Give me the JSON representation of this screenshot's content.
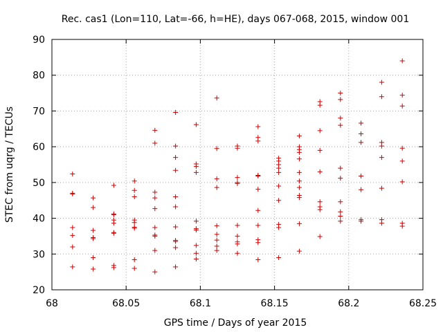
{
  "chart_data": {
    "type": "scatter",
    "title": "Rec. cas1 (Lon=110, Lat=-66, h=HE), days 067-068, 2015, window 001",
    "xlabel": "GPS time / Days of year 2015",
    "ylabel": "STEC from uqrg / TECUs",
    "xlim": [
      68,
      68.25
    ],
    "ylim": [
      20,
      90
    ],
    "xticks": [
      68,
      68.05,
      68.1,
      68.15,
      68.2,
      68.25
    ],
    "xtick_labels": [
      "68",
      "68.05",
      "68.1",
      "68.15",
      "68.2",
      "68.25"
    ],
    "yticks": [
      20,
      30,
      40,
      50,
      60,
      70,
      80,
      90
    ],
    "ytick_labels": [
      "20",
      "30",
      "40",
      "50",
      "60",
      "70",
      "80",
      "90"
    ],
    "grid": true,
    "marker": "+",
    "color": "#cc0000",
    "series": [
      {
        "name": "STEC",
        "points": [
          [
            68.0139,
            52.4
          ],
          [
            68.0139,
            47.0
          ],
          [
            68.0139,
            46.8
          ],
          [
            68.0139,
            37.4
          ],
          [
            68.0139,
            35.2
          ],
          [
            68.0139,
            32.0
          ],
          [
            68.0139,
            26.4
          ],
          [
            68.0278,
            45.7
          ],
          [
            68.0278,
            43.0
          ],
          [
            68.0278,
            36.6
          ],
          [
            68.0278,
            34.6
          ],
          [
            68.0278,
            34.3
          ],
          [
            68.0278,
            29.0
          ],
          [
            68.0278,
            25.8
          ],
          [
            68.0417,
            49.2
          ],
          [
            68.0417,
            41.2
          ],
          [
            68.0417,
            41.0
          ],
          [
            68.0417,
            39.5
          ],
          [
            68.0417,
            38.6
          ],
          [
            68.0417,
            36.0
          ],
          [
            68.0417,
            35.8
          ],
          [
            68.0417,
            26.8
          ],
          [
            68.0417,
            26.2
          ],
          [
            68.0556,
            50.4
          ],
          [
            68.0556,
            47.8
          ],
          [
            68.0556,
            46.0
          ],
          [
            68.0556,
            39.5
          ],
          [
            68.0556,
            38.8
          ],
          [
            68.0556,
            37.5
          ],
          [
            68.0556,
            37.2
          ],
          [
            68.0556,
            28.4
          ],
          [
            68.0556,
            26.0
          ],
          [
            68.0694,
            64.6
          ],
          [
            68.0694,
            61.0
          ],
          [
            68.0694,
            47.3
          ],
          [
            68.0694,
            45.7
          ],
          [
            68.0694,
            42.7
          ],
          [
            68.0694,
            37.4
          ],
          [
            68.0694,
            35.3
          ],
          [
            68.0694,
            35.0
          ],
          [
            68.0694,
            31.0
          ],
          [
            68.0694,
            25.0
          ],
          [
            68.0833,
            69.6
          ],
          [
            68.0833,
            60.2
          ],
          [
            68.0833,
            57.0
          ],
          [
            68.0833,
            53.4
          ],
          [
            68.0833,
            46.0
          ],
          [
            68.0833,
            43.2
          ],
          [
            68.0833,
            37.6
          ],
          [
            68.0833,
            33.8
          ],
          [
            68.0833,
            33.5
          ],
          [
            68.0833,
            31.8
          ],
          [
            68.0833,
            26.4
          ],
          [
            68.0972,
            66.2
          ],
          [
            68.0972,
            55.2
          ],
          [
            68.0972,
            54.5
          ],
          [
            68.0972,
            52.8
          ],
          [
            68.0972,
            39.2
          ],
          [
            68.0972,
            37.1
          ],
          [
            68.0972,
            36.7
          ],
          [
            68.0972,
            32.4
          ],
          [
            68.0972,
            30.2
          ],
          [
            68.0972,
            28.6
          ],
          [
            68.1111,
            73.6
          ],
          [
            68.1111,
            59.5
          ],
          [
            68.1111,
            51.0
          ],
          [
            68.1111,
            48.6
          ],
          [
            68.1111,
            37.9
          ],
          [
            68.1111,
            35.5
          ],
          [
            68.1111,
            33.9
          ],
          [
            68.1111,
            32.2
          ],
          [
            68.1111,
            31.0
          ],
          [
            68.125,
            60.2
          ],
          [
            68.125,
            59.6
          ],
          [
            68.125,
            51.4
          ],
          [
            68.125,
            50.0
          ],
          [
            68.125,
            49.7
          ],
          [
            68.125,
            38.0
          ],
          [
            68.125,
            35.0
          ],
          [
            68.125,
            33.4
          ],
          [
            68.125,
            32.8
          ],
          [
            68.125,
            30.2
          ],
          [
            68.1389,
            65.6
          ],
          [
            68.1389,
            62.6
          ],
          [
            68.1389,
            61.6
          ],
          [
            68.1389,
            52.0
          ],
          [
            68.1389,
            51.8
          ],
          [
            68.1389,
            48.1
          ],
          [
            68.1389,
            42.2
          ],
          [
            68.1389,
            38.0
          ],
          [
            68.1389,
            34.0
          ],
          [
            68.1389,
            33.2
          ],
          [
            68.1389,
            28.4
          ],
          [
            68.1528,
            56.8
          ],
          [
            68.1528,
            56.0
          ],
          [
            68.1528,
            55.0
          ],
          [
            68.1528,
            54.0
          ],
          [
            68.1528,
            52.8
          ],
          [
            68.1528,
            49.0
          ],
          [
            68.1528,
            45.0
          ],
          [
            68.1528,
            38.3
          ],
          [
            68.1528,
            37.4
          ],
          [
            68.1528,
            29.0
          ],
          [
            68.1667,
            63.0
          ],
          [
            68.1667,
            60.0
          ],
          [
            68.1667,
            59.2
          ],
          [
            68.1667,
            58.4
          ],
          [
            68.1667,
            56.6
          ],
          [
            68.1667,
            52.8
          ],
          [
            68.1667,
            50.4
          ],
          [
            68.1667,
            48.6
          ],
          [
            68.1667,
            46.4
          ],
          [
            68.1667,
            45.8
          ],
          [
            68.1667,
            38.5
          ],
          [
            68.1667,
            30.8
          ],
          [
            68.1806,
            72.6
          ],
          [
            68.1806,
            71.6
          ],
          [
            68.1806,
            64.5
          ],
          [
            68.1806,
            59.0
          ],
          [
            68.1806,
            53.0
          ],
          [
            68.1806,
            44.6
          ],
          [
            68.1806,
            43.2
          ],
          [
            68.1806,
            42.4
          ],
          [
            68.1806,
            34.9
          ],
          [
            68.1944,
            75.0
          ],
          [
            68.1944,
            73.2
          ],
          [
            68.1944,
            68.0
          ],
          [
            68.1944,
            66.0
          ],
          [
            68.1944,
            54.0
          ],
          [
            68.1944,
            51.2
          ],
          [
            68.1944,
            44.6
          ],
          [
            68.1944,
            41.8
          ],
          [
            68.1944,
            40.6
          ],
          [
            68.1944,
            39.2
          ],
          [
            68.2083,
            66.6
          ],
          [
            68.2083,
            63.6
          ],
          [
            68.2083,
            61.2
          ],
          [
            68.2083,
            51.8
          ],
          [
            68.2083,
            48.0
          ],
          [
            68.2083,
            39.6
          ],
          [
            68.2083,
            39.2
          ],
          [
            68.2222,
            78.0
          ],
          [
            68.2222,
            74.0
          ],
          [
            68.2222,
            61.2
          ],
          [
            68.2222,
            60.2
          ],
          [
            68.2222,
            57.0
          ],
          [
            68.2222,
            48.4
          ],
          [
            68.2222,
            39.6
          ],
          [
            68.2222,
            38.6
          ],
          [
            68.2361,
            84.0
          ],
          [
            68.2361,
            74.4
          ],
          [
            68.2361,
            71.4
          ],
          [
            68.2361,
            59.6
          ],
          [
            68.2361,
            56.0
          ],
          [
            68.2361,
            50.2
          ],
          [
            68.2361,
            38.6
          ],
          [
            68.2361,
            37.8
          ]
        ]
      }
    ]
  }
}
